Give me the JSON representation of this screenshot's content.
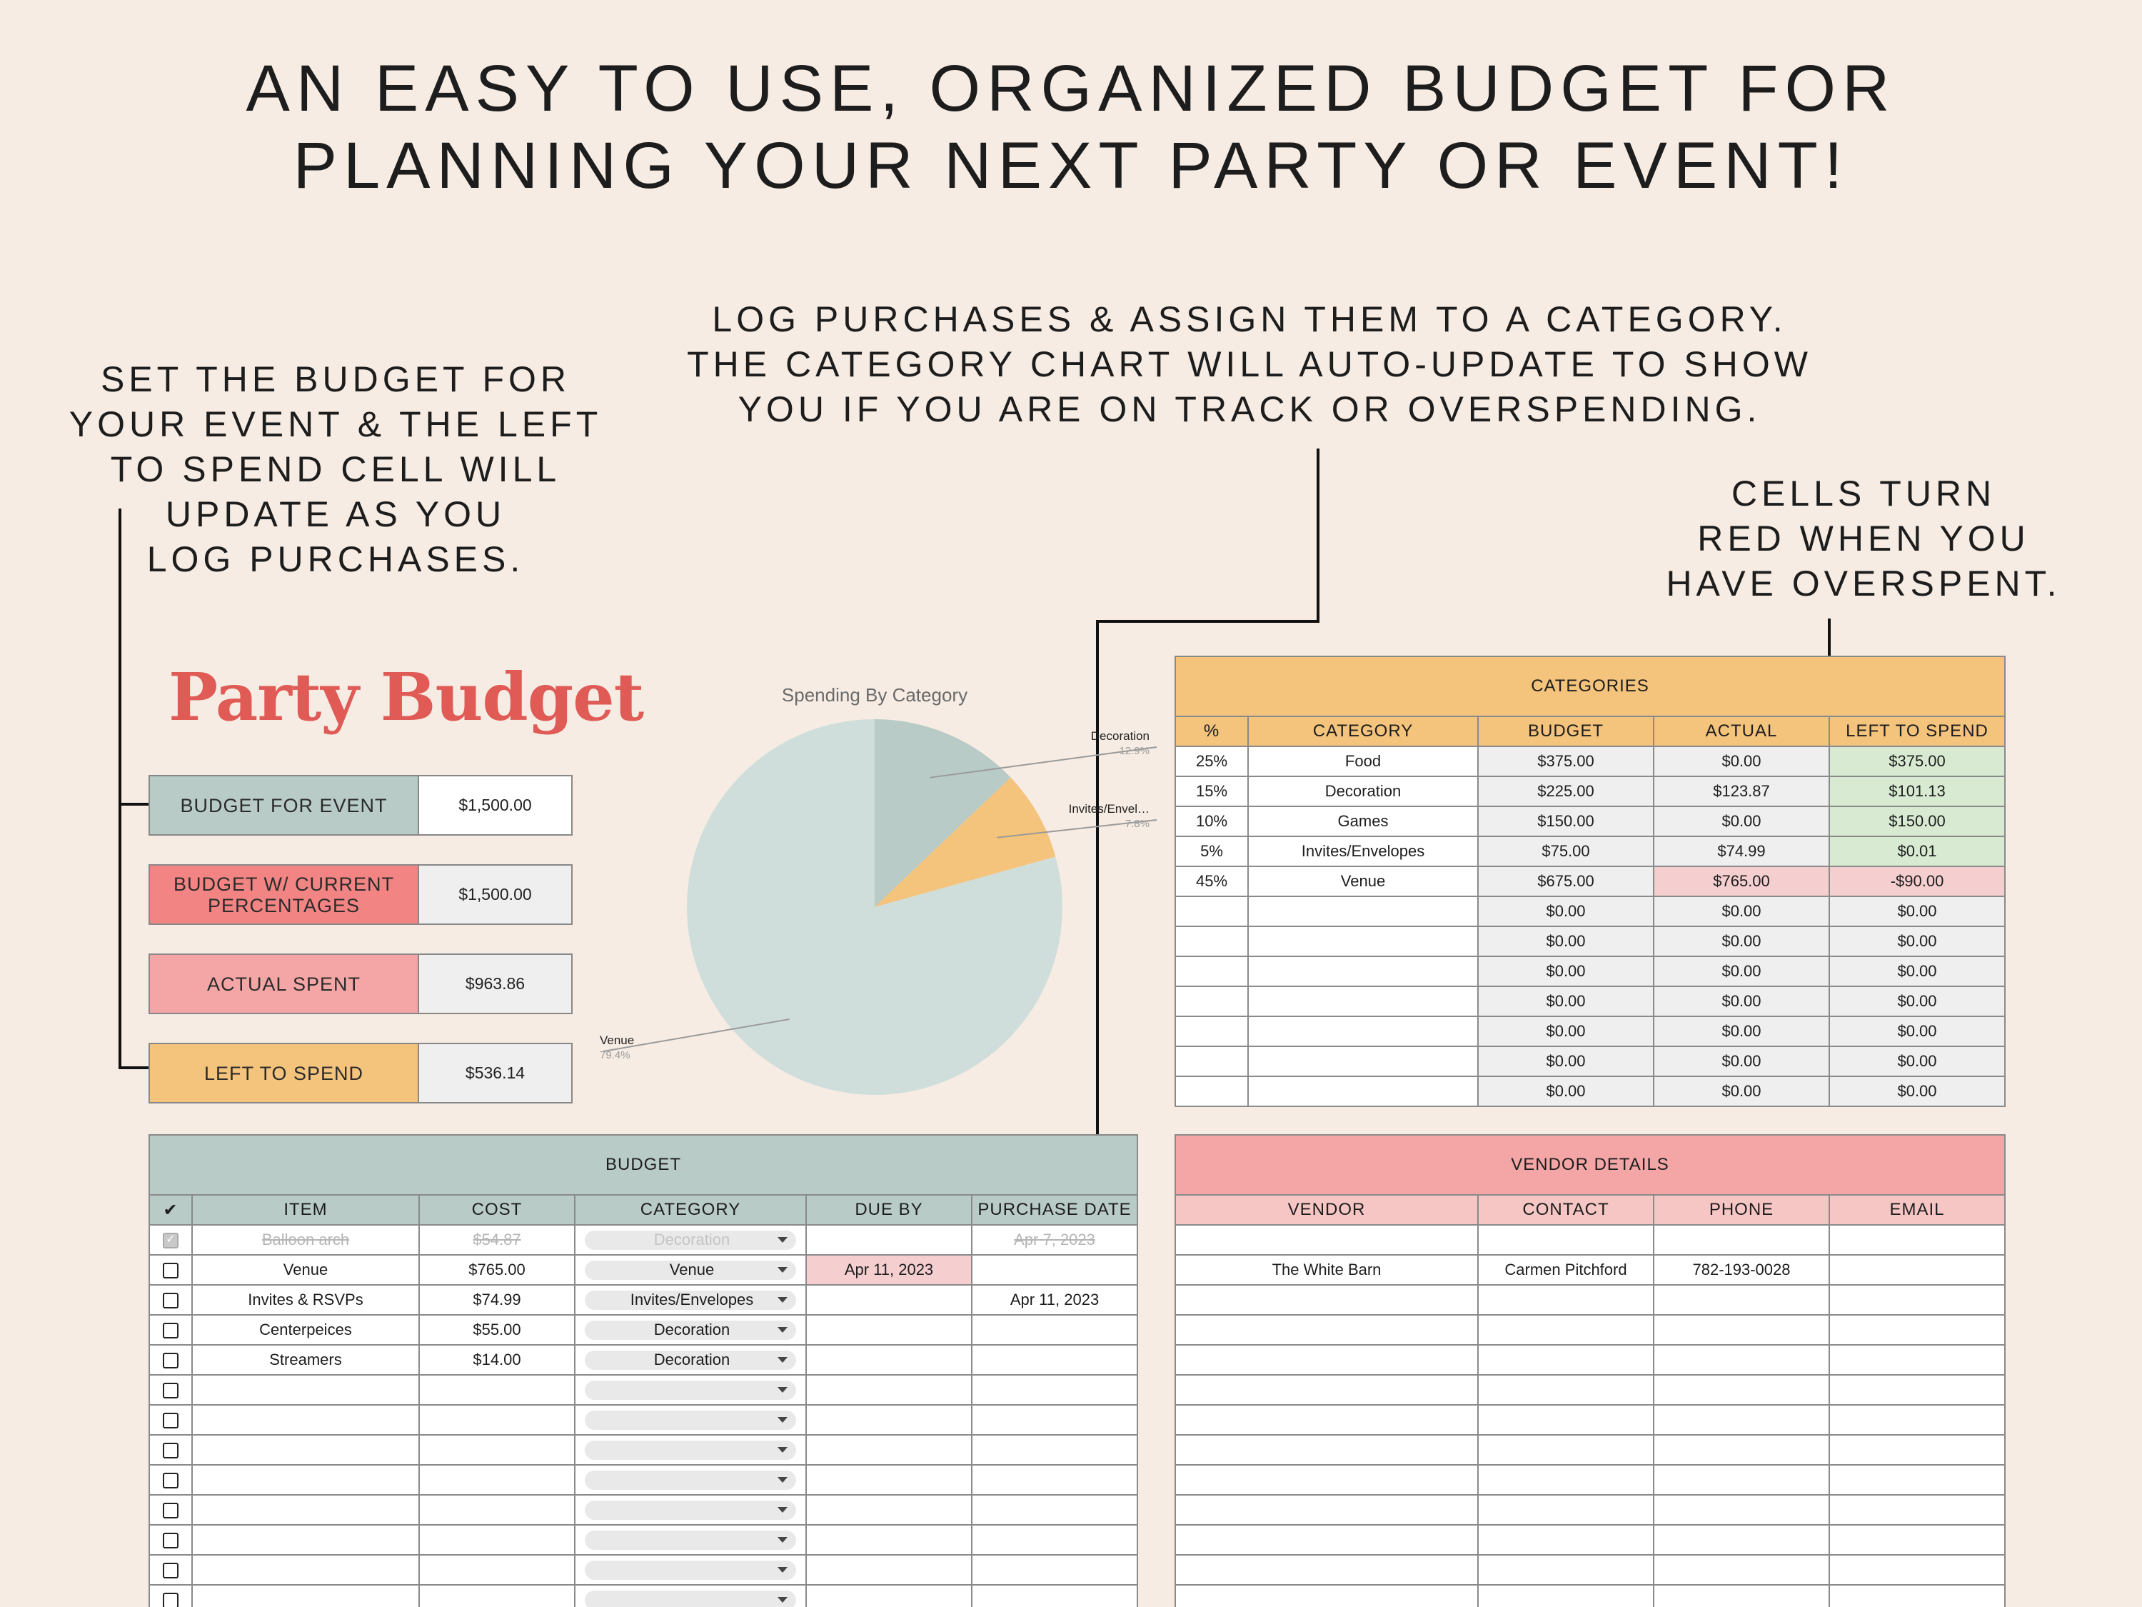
{
  "headline": [
    "AN EASY TO USE, ORGANIZED BUDGET FOR",
    "PLANNING YOUR NEXT PARTY OR EVENT!"
  ],
  "callouts": {
    "left": [
      "SET THE BUDGET FOR",
      "YOUR EVENT & THE LEFT",
      "TO SPEND CELL WILL",
      "UPDATE AS YOU",
      "LOG PURCHASES."
    ],
    "middle": [
      "LOG PURCHASES & ASSIGN THEM TO A CATEGORY.",
      "THE CATEGORY CHART WILL AUTO-UPDATE TO SHOW",
      "YOU IF YOU ARE ON TRACK OR OVERSPENDING."
    ],
    "right": [
      "CELLS TURN",
      "RED WHEN YOU",
      "HAVE OVERSPENT."
    ]
  },
  "brand_title": "Party Budget",
  "summary": [
    {
      "label": "BUDGET FOR EVENT",
      "value": "$1,500.00",
      "color": "#b8cbc6"
    },
    {
      "label": "BUDGET W/ CURRENT PERCENTAGES",
      "value": "$1,500.00",
      "color": "#f28583"
    },
    {
      "label": "ACTUAL SPENT",
      "value": "$963.86",
      "color": "#f4a6a6"
    },
    {
      "label": "LEFT TO SPEND",
      "value": "$536.14",
      "color": "#f4c37c"
    }
  ],
  "chart_data": {
    "type": "pie",
    "title": "Spending By Category",
    "slices": [
      {
        "label": "Decoration",
        "pct_label": "12.9%",
        "value": 12.9,
        "color": "#b8cbc6"
      },
      {
        "label": "Invites/Envel…",
        "pct_label": "7.8%",
        "value": 7.8,
        "color": "#f4c37c"
      },
      {
        "label": "Venue",
        "pct_label": "79.4%",
        "value": 79.4,
        "color": "#d0dedb"
      }
    ]
  },
  "categories": {
    "title": "CATEGORIES",
    "headers": [
      "%",
      "CATEGORY",
      "BUDGET",
      "ACTUAL",
      "LEFT TO SPEND"
    ],
    "rows": [
      {
        "pct": "25%",
        "category": "Food",
        "budget": "$375.00",
        "actual": "$0.00",
        "left": "$375.00",
        "actual_status": "normal",
        "left_status": "ok"
      },
      {
        "pct": "15%",
        "category": "Decoration",
        "budget": "$225.00",
        "actual": "$123.87",
        "left": "$101.13",
        "actual_status": "normal",
        "left_status": "ok"
      },
      {
        "pct": "10%",
        "category": "Games",
        "budget": "$150.00",
        "actual": "$0.00",
        "left": "$150.00",
        "actual_status": "normal",
        "left_status": "ok"
      },
      {
        "pct": "5%",
        "category": "Invites/Envelopes",
        "budget": "$75.00",
        "actual": "$74.99",
        "left": "$0.01",
        "actual_status": "normal",
        "left_status": "ok"
      },
      {
        "pct": "45%",
        "category": "Venue",
        "budget": "$675.00",
        "actual": "$765.00",
        "left": "-$90.00",
        "actual_status": "over",
        "left_status": "over"
      },
      {
        "pct": "",
        "category": "",
        "budget": "$0.00",
        "actual": "$0.00",
        "left": "$0.00",
        "actual_status": "normal",
        "left_status": "normal"
      },
      {
        "pct": "",
        "category": "",
        "budget": "$0.00",
        "actual": "$0.00",
        "left": "$0.00",
        "actual_status": "normal",
        "left_status": "normal"
      },
      {
        "pct": "",
        "category": "",
        "budget": "$0.00",
        "actual": "$0.00",
        "left": "$0.00",
        "actual_status": "normal",
        "left_status": "normal"
      },
      {
        "pct": "",
        "category": "",
        "budget": "$0.00",
        "actual": "$0.00",
        "left": "$0.00",
        "actual_status": "normal",
        "left_status": "normal"
      },
      {
        "pct": "",
        "category": "",
        "budget": "$0.00",
        "actual": "$0.00",
        "left": "$0.00",
        "actual_status": "normal",
        "left_status": "normal"
      },
      {
        "pct": "",
        "category": "",
        "budget": "$0.00",
        "actual": "$0.00",
        "left": "$0.00",
        "actual_status": "normal",
        "left_status": "normal"
      },
      {
        "pct": "",
        "category": "",
        "budget": "$0.00",
        "actual": "$0.00",
        "left": "$0.00",
        "actual_status": "normal",
        "left_status": "normal"
      }
    ]
  },
  "budget": {
    "title": "BUDGET",
    "headers": [
      "✔",
      "ITEM",
      "COST",
      "CATEGORY",
      "DUE BY",
      "PURCHASE DATE"
    ],
    "rows": [
      {
        "checked": true,
        "item": "Balloon arch",
        "cost": "$54.87",
        "category": "Decoration",
        "due": "",
        "purchased": "Apr 7, 2023",
        "due_overdue": false
      },
      {
        "checked": false,
        "item": "Venue",
        "cost": "$765.00",
        "category": "Venue",
        "due": "Apr 11, 2023",
        "purchased": "",
        "due_overdue": true
      },
      {
        "checked": false,
        "item": "Invites & RSVPs",
        "cost": "$74.99",
        "category": "Invites/Envelopes",
        "due": "",
        "purchased": "Apr 11, 2023",
        "due_overdue": false
      },
      {
        "checked": false,
        "item": "Centerpeices",
        "cost": "$55.00",
        "category": "Decoration",
        "due": "",
        "purchased": "",
        "due_overdue": false
      },
      {
        "checked": false,
        "item": "Streamers",
        "cost": "$14.00",
        "category": "Decoration",
        "due": "",
        "purchased": "",
        "due_overdue": false
      },
      {
        "checked": false,
        "item": "",
        "cost": "",
        "category": "",
        "due": "",
        "purchased": "",
        "due_overdue": false
      },
      {
        "checked": false,
        "item": "",
        "cost": "",
        "category": "",
        "due": "",
        "purchased": "",
        "due_overdue": false
      },
      {
        "checked": false,
        "item": "",
        "cost": "",
        "category": "",
        "due": "",
        "purchased": "",
        "due_overdue": false
      },
      {
        "checked": false,
        "item": "",
        "cost": "",
        "category": "",
        "due": "",
        "purchased": "",
        "due_overdue": false
      },
      {
        "checked": false,
        "item": "",
        "cost": "",
        "category": "",
        "due": "",
        "purchased": "",
        "due_overdue": false
      },
      {
        "checked": false,
        "item": "",
        "cost": "",
        "category": "",
        "due": "",
        "purchased": "",
        "due_overdue": false
      },
      {
        "checked": false,
        "item": "",
        "cost": "",
        "category": "",
        "due": "",
        "purchased": "",
        "due_overdue": false
      },
      {
        "checked": false,
        "item": "",
        "cost": "",
        "category": "",
        "due": "",
        "purchased": "",
        "due_overdue": false
      }
    ]
  },
  "vendors": {
    "title": "VENDOR DETAILS",
    "headers": [
      "VENDOR",
      "CONTACT",
      "PHONE",
      "EMAIL"
    ],
    "rows": [
      {
        "vendor": "",
        "contact": "",
        "phone": "",
        "email": ""
      },
      {
        "vendor": "The White Barn",
        "contact": "Carmen Pitchford",
        "phone": "782-193-0028",
        "email": ""
      },
      {
        "vendor": "",
        "contact": "",
        "phone": "",
        "email": ""
      },
      {
        "vendor": "",
        "contact": "",
        "phone": "",
        "email": ""
      },
      {
        "vendor": "",
        "contact": "",
        "phone": "",
        "email": ""
      },
      {
        "vendor": "",
        "contact": "",
        "phone": "",
        "email": ""
      },
      {
        "vendor": "",
        "contact": "",
        "phone": "",
        "email": ""
      },
      {
        "vendor": "",
        "contact": "",
        "phone": "",
        "email": ""
      },
      {
        "vendor": "",
        "contact": "",
        "phone": "",
        "email": ""
      },
      {
        "vendor": "",
        "contact": "",
        "phone": "",
        "email": ""
      },
      {
        "vendor": "",
        "contact": "",
        "phone": "",
        "email": ""
      },
      {
        "vendor": "",
        "contact": "",
        "phone": "",
        "email": ""
      },
      {
        "vendor": "",
        "contact": "",
        "phone": "",
        "email": ""
      }
    ]
  }
}
